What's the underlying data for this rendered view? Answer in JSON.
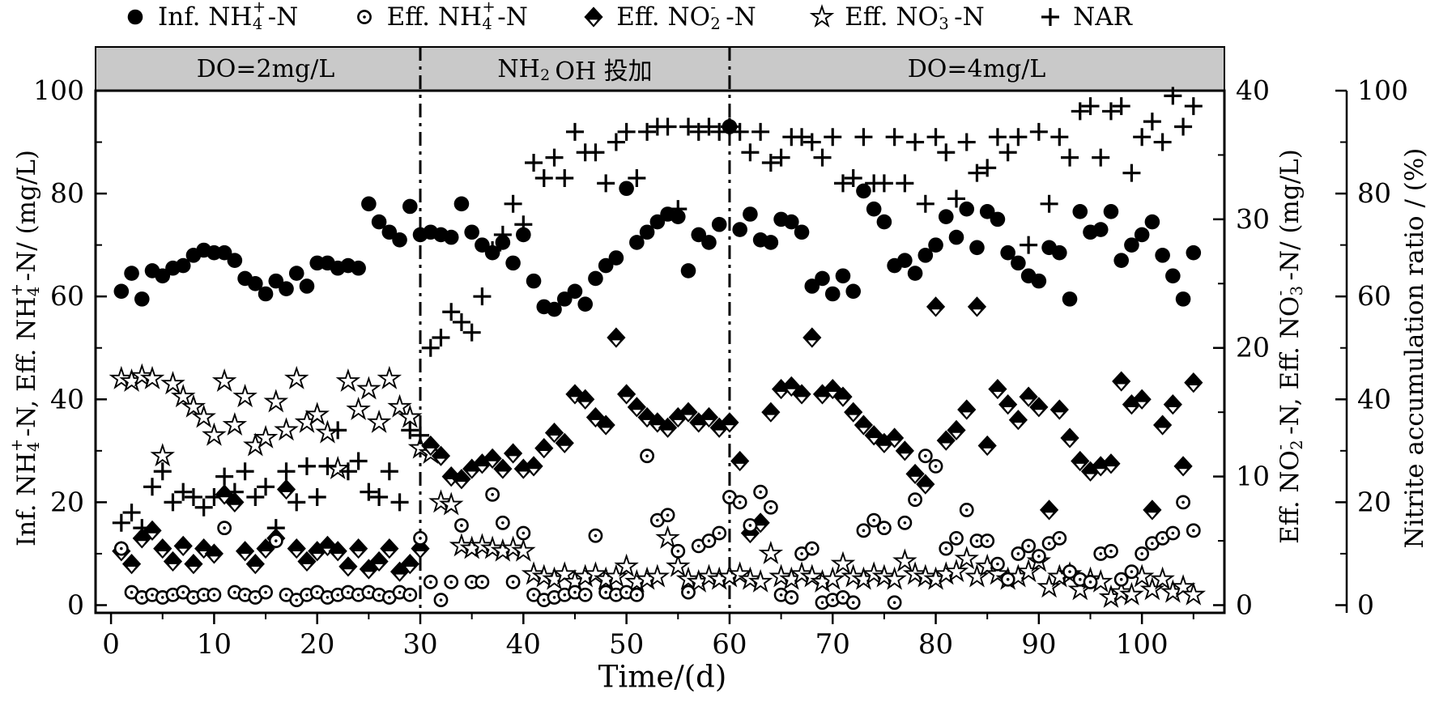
{
  "colors": {
    "ink": "#000000",
    "banner_fill": "#c9c9c9",
    "background": "#ffffff"
  },
  "legend": {
    "items": [
      {
        "marker": "circle-filled",
        "pre": "Inf.  NH",
        "sub": "4",
        "sup": "+",
        "post": "-N"
      },
      {
        "marker": "circle-open",
        "pre": "Eff.  NH",
        "sub": "4",
        "sup": "+",
        "post": "-N"
      },
      {
        "marker": "diamond-filled",
        "pre": "Eff.  NO",
        "sub": "2",
        "sup": "-",
        "post": "-N"
      },
      {
        "marker": "star-open",
        "pre": "Eff.  NO",
        "sub": "3",
        "sup": "-",
        "post": "-N"
      },
      {
        "marker": "plus",
        "pre": "NAR",
        "sub": "",
        "sup": "",
        "post": ""
      }
    ]
  },
  "banner": {
    "sections": [
      {
        "pre": "DO=2mg/L",
        "sub": "",
        "post": ""
      },
      {
        "pre": "NH",
        "sub": "2",
        "post": "OH 投加"
      },
      {
        "pre": "DO=4mg/L",
        "sub": "",
        "post": ""
      }
    ]
  },
  "axis_titles": {
    "left": {
      "p1": "Inf.  NH",
      "s1sub": "4",
      "s1sup": "+",
      "p2": "-N,  Eff.  NH",
      "s2sub": "4",
      "s2sup": "+",
      "p3": "-N/ (mg/L)"
    },
    "right1": {
      "p1": "Eff.  NO",
      "s1sub": "2",
      "s1sup": "-",
      "p2": "-N,  Eff.  NO",
      "s2sub": "3",
      "s2sup": "-",
      "p3": "-N/ (mg/L)"
    },
    "right2": {
      "p1": "Nitrite accumulation ratio  / (%)"
    },
    "x": {
      "p1": "Time/(d)"
    }
  },
  "chart_data": {
    "type": "scatter",
    "title": "",
    "x_axis": {
      "label": "Time/(d)",
      "range": [
        -1.5,
        108
      ],
      "ticks": [
        0,
        10,
        20,
        30,
        40,
        50,
        60,
        70,
        80,
        90,
        100
      ],
      "minor_step": 5
    },
    "y_left": {
      "label": "Inf. NH4+-N, Eff. NH4+-N/ (mg/L)",
      "range": [
        -1.5,
        100
      ],
      "ticks": [
        0,
        20,
        40,
        60,
        80,
        100
      ],
      "minor_step": 10
    },
    "y_right1": {
      "label": "Eff. NO2--N, Eff. NO3--N/ (mg/L)",
      "range": [
        -0.6,
        40
      ],
      "ticks": [
        0,
        10,
        20,
        30,
        40
      ],
      "minor_step": 5,
      "left_units_per_unit": 2.5
    },
    "y_right2": {
      "label": "Nitrite accumulation ratio / (%)",
      "range": [
        -1.5,
        100
      ],
      "ticks": [
        0,
        20,
        40,
        60,
        80,
        100
      ],
      "minor_step": 10
    },
    "annotations": {
      "vlines_x": [
        30,
        60
      ],
      "phase_sections": [
        {
          "label": "DO=2mg/L",
          "from": -1.5,
          "to": 30
        },
        {
          "label": "NH2OH 投加",
          "from": 30,
          "to": 60
        },
        {
          "label": "DO=4mg/L",
          "from": 60,
          "to": 108
        }
      ]
    },
    "legend_position": "top",
    "grid": false,
    "series": [
      {
        "name": "Inf. NH4+-N",
        "marker": "circle-filled",
        "axis": "left",
        "x_start": 1,
        "x_step": 1,
        "values": [
          61,
          64.5,
          59.5,
          65,
          64,
          65.5,
          66,
          68,
          69,
          68.5,
          68.5,
          67,
          63.5,
          62.5,
          60.5,
          63,
          61.5,
          64.5,
          62,
          66.5,
          66.5,
          65.5,
          66,
          65.5,
          78,
          74.5,
          72.5,
          71,
          77.5,
          72,
          72.5,
          72,
          71.5,
          78,
          72.5,
          70,
          68.5,
          70.5,
          66.5,
          72,
          63,
          58,
          57.5,
          59.5,
          61,
          58.5,
          63.5,
          66,
          67.5,
          81,
          70.5,
          72.5,
          74.5,
          76,
          75.5,
          65,
          72,
          70.5,
          74,
          93,
          73,
          76,
          71,
          70.5,
          75,
          74.5,
          72.5,
          62,
          63.5,
          60.5,
          64,
          61,
          80.5,
          77,
          74.5,
          66,
          67,
          64.5,
          68,
          70,
          75.5,
          71.5,
          77,
          69.5,
          76.5,
          75,
          68.5,
          66.5,
          64,
          63,
          69.5,
          68.5,
          59.5,
          76.5,
          72.5,
          73,
          76.5,
          67,
          70,
          72,
          74.5,
          68,
          64,
          59.5,
          68.5
        ]
      },
      {
        "name": "Eff. NH4+-N",
        "marker": "circle-open",
        "axis": "left",
        "x_start": 1,
        "x_step": 1,
        "values": [
          11,
          2.5,
          1.5,
          2,
          1.5,
          2,
          2.5,
          1.5,
          2,
          2,
          15,
          2.5,
          2,
          1.5,
          2.5,
          12.5,
          2,
          1,
          2,
          2.5,
          1.5,
          2,
          2.5,
          2,
          2.5,
          2,
          1.5,
          2.5,
          2,
          13,
          4.5,
          1,
          4.5,
          15.5,
          4.5,
          4.5,
          21.5,
          16,
          4.5,
          14,
          2,
          1,
          1.5,
          2,
          2.5,
          2,
          13.5,
          2.5,
          2,
          2.5,
          2,
          29,
          16.5,
          17.5,
          10.5,
          2.5,
          11.5,
          12.5,
          14,
          21,
          20,
          15.5,
          22,
          19,
          2,
          1.5,
          10,
          11,
          0.5,
          1,
          1.5,
          0.5,
          14.5,
          16.5,
          15,
          0.5,
          16,
          20.5,
          29,
          27,
          11,
          13,
          18.5,
          12.5,
          12.5,
          8,
          5,
          10,
          11.5,
          9.5,
          12,
          13,
          6.5,
          5,
          4.5,
          10,
          10.5,
          5,
          6.5,
          10,
          12,
          13,
          14,
          20,
          14.5
        ]
      },
      {
        "name": "Eff. NO2--N",
        "marker": "diamond-filled",
        "axis": "right1",
        "x_start": 1,
        "x_step": 1,
        "values": [
          4.2,
          3.2,
          5.2,
          5.8,
          4.4,
          3.4,
          4.6,
          3.2,
          4.4,
          4,
          8.6,
          8,
          4.2,
          3.2,
          4.4,
          5.2,
          9,
          4.4,
          3.4,
          4.2,
          4.6,
          4.2,
          3,
          4.4,
          2.8,
          3.4,
          4.4,
          2.6,
          3.2,
          4.4,
          12.4,
          11.6,
          10,
          9.8,
          10.6,
          11,
          11.4,
          10.6,
          11.8,
          10.6,
          10.8,
          12.2,
          13.4,
          12.6,
          16.4,
          16,
          14.6,
          14,
          20.8,
          16.4,
          15.4,
          14.6,
          14.2,
          13.8,
          14.6,
          15,
          14.2,
          14.6,
          13.8,
          14.2,
          11.2,
          5.6,
          6.4,
          15,
          16.8,
          17,
          16.4,
          20.8,
          16.4,
          16.8,
          16.2,
          15,
          14,
          13.2,
          12.6,
          13,
          12,
          10.2,
          9.4,
          23.2,
          12.8,
          13.6,
          15.2,
          23.2,
          12.4,
          16.8,
          15.6,
          14.4,
          16.2,
          15.4,
          7.4,
          15.2,
          13,
          11.2,
          10.4,
          10.8,
          11,
          17.4,
          15.6,
          16,
          7.4,
          14,
          15.6,
          10.8,
          17.3
        ]
      },
      {
        "name": "Eff. NO3--N",
        "marker": "star-open",
        "axis": "right1",
        "x_start": 1,
        "x_step": 1,
        "values": [
          17.6,
          17.4,
          17.8,
          17.6,
          11.6,
          17.2,
          16.2,
          15.4,
          14.6,
          13.2,
          17.4,
          14,
          16.2,
          12.4,
          13,
          15.8,
          13.6,
          17.6,
          14.2,
          14.8,
          13.4,
          10.6,
          17.4,
          15.2,
          16.8,
          14.2,
          17.6,
          15.4,
          14.6,
          12.2,
          11.8,
          8,
          7.8,
          4.6,
          4.4,
          4.6,
          4.4,
          4.2,
          4.4,
          4.2,
          2.4,
          2.2,
          2,
          2.4,
          1.8,
          2.2,
          2.4,
          2,
          2.2,
          3,
          1.8,
          2,
          2.2,
          5.2,
          3,
          2,
          1.8,
          2.2,
          2,
          2.2,
          2.4,
          2,
          1.8,
          4,
          2.2,
          2,
          2.4,
          2.2,
          1.8,
          2,
          3.2,
          2.2,
          2,
          2.4,
          2.2,
          2,
          3.4,
          2.4,
          2.2,
          2,
          2.4,
          2.6,
          3.6,
          2.2,
          3,
          2.4,
          2,
          2.2,
          2.6,
          3.4,
          1.4,
          2.2,
          2.4,
          1.2,
          2,
          1.8,
          0.6,
          1,
          0.8,
          2.2,
          1.2,
          2,
          1,
          1.4,
          0.8
        ]
      },
      {
        "name": "NAR",
        "marker": "plus",
        "axis": "right2",
        "x_start": 1,
        "x_step": 1,
        "values": [
          16,
          18,
          15,
          23,
          26,
          20,
          22,
          21,
          19,
          21,
          25,
          22,
          26,
          21,
          23,
          15,
          26,
          20,
          27,
          21,
          27,
          34,
          26,
          28,
          22,
          21,
          26,
          20,
          34,
          33,
          50,
          52,
          57,
          55,
          53,
          60,
          69,
          72,
          78,
          74,
          86,
          83,
          87,
          83,
          92,
          88,
          88,
          82,
          90,
          92,
          83,
          92,
          93,
          93,
          77,
          93,
          92,
          93,
          92,
          93,
          92,
          88,
          92,
          86,
          87,
          91,
          91,
          90,
          87,
          91,
          82,
          83,
          91,
          82,
          82,
          91,
          82,
          90,
          78,
          91,
          88,
          79,
          90,
          84,
          85,
          91,
          88,
          91,
          70,
          92,
          78,
          91,
          87,
          96,
          97,
          87,
          96,
          97,
          84,
          91,
          94,
          90,
          99,
          93,
          97
        ]
      }
    ]
  }
}
